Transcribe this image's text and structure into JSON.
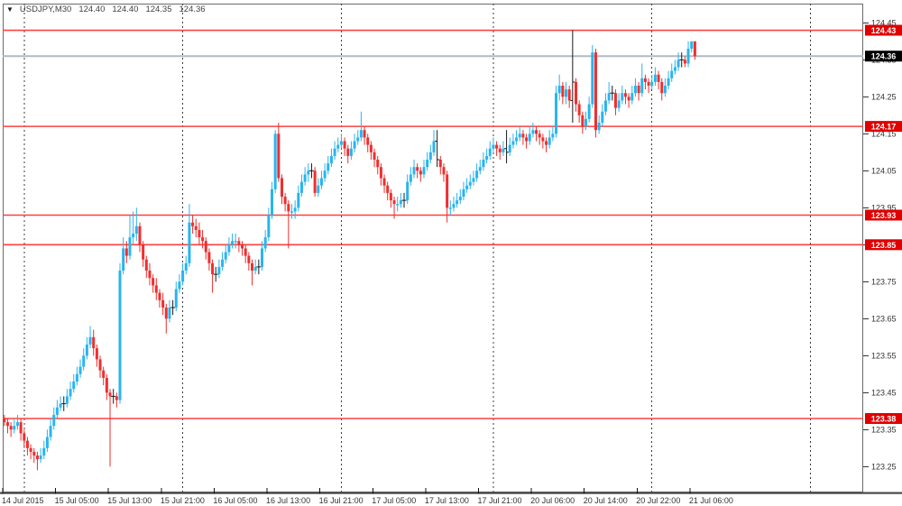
{
  "app": {
    "quote": {
      "symbol_period": "USDJPY,M30",
      "open": "124.40",
      "high": "124.40",
      "low": "124.35",
      "close": "124.36"
    }
  },
  "colors": {
    "bull": "#2AB4F0",
    "bear": "#F02E2E",
    "black_bar": "#1A1A1A",
    "level_line": "#FF4040",
    "bid_line": "#B0BAC6",
    "badge_red": "#DF0000",
    "badge_black": "#000000",
    "badge_text": "#FFFFFF",
    "axis_text": "#333333",
    "border": "#6B6B6B",
    "separator": "#3C3C3C",
    "axis_line": "#4A4A4A",
    "background": "#FFFFFF"
  },
  "price_axis": {
    "ticks": [
      "124.45",
      "124.35",
      "124.25",
      "124.15",
      "124.05",
      "123.95",
      "123.85",
      "123.75",
      "123.65",
      "123.55",
      "123.45",
      "123.35",
      "123.25"
    ]
  },
  "time_axis": {
    "labels": [
      {
        "bar": 0,
        "text": "14 Jul 2015"
      },
      {
        "bar": 16,
        "text": "15 Jul 05:00"
      },
      {
        "bar": 32,
        "text": "15 Jul 13:00"
      },
      {
        "bar": 48,
        "text": "15 Jul 21:00"
      },
      {
        "bar": 64,
        "text": "16 Jul 05:00"
      },
      {
        "bar": 80,
        "text": "16 Jul 13:00"
      },
      {
        "bar": 96,
        "text": "16 Jul 21:00"
      },
      {
        "bar": 112,
        "text": "17 Jul 05:00"
      },
      {
        "bar": 128,
        "text": "17 Jul 13:00"
      },
      {
        "bar": 144,
        "text": "17 Jul 21:00"
      },
      {
        "bar": 160,
        "text": "20 Jul 06:00"
      },
      {
        "bar": 176,
        "text": "20 Jul 14:00"
      },
      {
        "bar": 192,
        "text": "20 Jul 22:00"
      },
      {
        "bar": 208,
        "text": "21 Jul 06:00"
      }
    ]
  },
  "levels": [
    {
      "price": 124.43,
      "label": "124.43",
      "style": "level"
    },
    {
      "price": 124.36,
      "label": "124.36",
      "style": "bid"
    },
    {
      "price": 124.17,
      "label": "124.17",
      "style": "level"
    },
    {
      "price": 123.93,
      "label": "123.93",
      "style": "level"
    },
    {
      "price": 123.85,
      "label": "123.85",
      "style": "level"
    },
    {
      "price": 123.38,
      "label": "123.38",
      "style": "level"
    }
  ],
  "separator_bars": [
    6,
    54,
    102,
    148,
    196,
    244
  ],
  "chart_data": {
    "type": "candlestick",
    "symbol": "USDJPY",
    "timeframe": "M30",
    "bar_minutes": 30,
    "ylim": [
      123.18,
      124.502
    ],
    "x_start_label": "14 Jul 2015",
    "x_end_label": "21 Jul 06:00",
    "black_bar_indices": [
      18,
      33,
      51,
      64,
      77,
      93,
      121,
      131,
      152,
      172,
      184,
      205
    ],
    "candles": [
      [
        123.38,
        123.39,
        123.36,
        123.37
      ],
      [
        123.37,
        123.38,
        123.34,
        123.36
      ],
      [
        123.36,
        123.37,
        123.33,
        123.35
      ],
      [
        123.35,
        123.38,
        123.34,
        123.36
      ],
      [
        123.36,
        123.39,
        123.35,
        123.37
      ],
      [
        123.37,
        123.38,
        123.32,
        123.34
      ],
      [
        123.34,
        123.35,
        123.3,
        123.32
      ],
      [
        123.32,
        123.33,
        123.28,
        123.3
      ],
      [
        123.3,
        123.31,
        123.27,
        123.29
      ],
      [
        123.29,
        123.3,
        123.26,
        123.28
      ],
      [
        123.28,
        123.29,
        123.24,
        123.27
      ],
      [
        123.27,
        123.3,
        123.26,
        123.28
      ],
      [
        123.28,
        123.32,
        123.27,
        123.3
      ],
      [
        123.3,
        123.35,
        123.29,
        123.33
      ],
      [
        123.33,
        123.38,
        123.32,
        123.36
      ],
      [
        123.36,
        123.41,
        123.35,
        123.39
      ],
      [
        123.39,
        123.43,
        123.38,
        123.41
      ],
      [
        123.41,
        123.44,
        123.4,
        123.42
      ],
      [
        123.42,
        123.44,
        123.4,
        123.42
      ],
      [
        123.42,
        123.46,
        123.41,
        123.44
      ],
      [
        123.44,
        123.48,
        123.43,
        123.46
      ],
      [
        123.46,
        123.5,
        123.45,
        123.48
      ],
      [
        123.48,
        123.52,
        123.47,
        123.5
      ],
      [
        123.5,
        123.54,
        123.49,
        123.52
      ],
      [
        123.52,
        123.57,
        123.51,
        123.55
      ],
      [
        123.55,
        123.6,
        123.54,
        123.58
      ],
      [
        123.58,
        123.63,
        123.57,
        123.6
      ],
      [
        123.6,
        123.62,
        123.55,
        123.57
      ],
      [
        123.57,
        123.58,
        123.52,
        123.54
      ],
      [
        123.54,
        123.55,
        123.49,
        123.51
      ],
      [
        123.51,
        123.52,
        123.47,
        123.49
      ],
      [
        123.49,
        123.5,
        123.43,
        123.45
      ],
      [
        123.45,
        123.46,
        123.25,
        123.44
      ],
      [
        123.44,
        123.46,
        123.42,
        123.44
      ],
      [
        123.44,
        123.45,
        123.41,
        123.43
      ],
      [
        123.43,
        123.8,
        123.42,
        123.78
      ],
      [
        123.78,
        123.87,
        123.77,
        123.84
      ],
      [
        123.84,
        123.86,
        123.8,
        123.82
      ],
      [
        123.82,
        123.93,
        123.81,
        123.87
      ],
      [
        123.87,
        123.94,
        123.85,
        123.88
      ],
      [
        123.88,
        123.95,
        123.86,
        123.9
      ],
      [
        123.9,
        123.91,
        123.83,
        123.85
      ],
      [
        123.85,
        123.86,
        123.79,
        123.81
      ],
      [
        123.81,
        123.82,
        123.76,
        123.78
      ],
      [
        123.78,
        123.8,
        123.74,
        123.76
      ],
      [
        123.76,
        123.77,
        123.72,
        123.74
      ],
      [
        123.74,
        123.76,
        123.7,
        123.72
      ],
      [
        123.72,
        123.73,
        123.68,
        123.7
      ],
      [
        123.7,
        123.72,
        123.66,
        123.68
      ],
      [
        123.68,
        123.69,
        123.61,
        123.65
      ],
      [
        123.65,
        123.7,
        123.64,
        123.68
      ],
      [
        123.68,
        123.7,
        123.66,
        123.68
      ],
      [
        123.68,
        123.75,
        123.67,
        123.73
      ],
      [
        123.73,
        123.77,
        123.72,
        123.75
      ],
      [
        123.75,
        123.8,
        123.74,
        123.78
      ],
      [
        123.78,
        123.82,
        123.77,
        123.8
      ],
      [
        123.8,
        123.96,
        123.79,
        123.91
      ],
      [
        123.91,
        123.93,
        123.88,
        123.9
      ],
      [
        123.9,
        123.92,
        123.87,
        123.89
      ],
      [
        123.89,
        123.91,
        123.85,
        123.87
      ],
      [
        123.87,
        123.89,
        123.84,
        123.86
      ],
      [
        123.86,
        123.87,
        123.81,
        123.83
      ],
      [
        123.83,
        123.84,
        123.78,
        123.8
      ],
      [
        123.8,
        123.81,
        123.72,
        123.77
      ],
      [
        123.77,
        123.79,
        123.75,
        123.77
      ],
      [
        123.77,
        123.81,
        123.76,
        123.79
      ],
      [
        123.79,
        123.83,
        123.78,
        123.81
      ],
      [
        123.81,
        123.85,
        123.8,
        123.83
      ],
      [
        123.83,
        123.87,
        123.82,
        123.85
      ],
      [
        123.85,
        123.88,
        123.84,
        123.86
      ],
      [
        123.86,
        123.88,
        123.84,
        123.86
      ],
      [
        123.86,
        123.87,
        123.83,
        123.85
      ],
      [
        123.85,
        123.86,
        123.82,
        123.84
      ],
      [
        123.84,
        123.85,
        123.8,
        123.82
      ],
      [
        123.82,
        123.83,
        123.78,
        123.8
      ],
      [
        123.8,
        123.81,
        123.74,
        123.78
      ],
      [
        123.78,
        123.81,
        123.77,
        123.79
      ],
      [
        123.79,
        123.81,
        123.77,
        123.79
      ],
      [
        123.79,
        123.86,
        123.78,
        123.84
      ],
      [
        123.84,
        123.89,
        123.83,
        123.87
      ],
      [
        123.87,
        123.95,
        123.86,
        123.93
      ],
      [
        123.93,
        124.02,
        123.92,
        124.0
      ],
      [
        124.0,
        124.16,
        123.99,
        124.15
      ],
      [
        124.15,
        124.18,
        124.02,
        124.03
      ],
      [
        124.03,
        124.04,
        123.96,
        123.98
      ],
      [
        123.98,
        123.99,
        123.94,
        123.96
      ],
      [
        123.96,
        123.97,
        123.84,
        123.94
      ],
      [
        123.94,
        123.96,
        123.92,
        123.94
      ],
      [
        123.94,
        123.97,
        123.92,
        123.95
      ],
      [
        123.95,
        124.01,
        123.94,
        123.99
      ],
      [
        123.99,
        124.04,
        123.98,
        124.02
      ],
      [
        124.02,
        124.06,
        124.01,
        124.04
      ],
      [
        124.04,
        124.07,
        124.02,
        124.05
      ],
      [
        124.05,
        124.07,
        124.03,
        124.05
      ],
      [
        124.05,
        124.06,
        123.98,
        123.99
      ],
      [
        123.99,
        124.03,
        123.98,
        124.01
      ],
      [
        124.01,
        124.05,
        124.0,
        124.03
      ],
      [
        124.03,
        124.07,
        124.02,
        124.05
      ],
      [
        124.05,
        124.09,
        124.04,
        124.07
      ],
      [
        124.07,
        124.11,
        124.06,
        124.09
      ],
      [
        124.09,
        124.13,
        124.08,
        124.11
      ],
      [
        124.11,
        124.14,
        124.1,
        124.12
      ],
      [
        124.12,
        124.15,
        124.11,
        124.13
      ],
      [
        124.13,
        124.14,
        124.09,
        124.11
      ],
      [
        124.11,
        124.12,
        124.07,
        124.09
      ],
      [
        124.09,
        124.13,
        124.08,
        124.11
      ],
      [
        124.11,
        124.15,
        124.1,
        124.13
      ],
      [
        124.13,
        124.16,
        124.12,
        124.14
      ],
      [
        124.14,
        124.21,
        124.13,
        124.16
      ],
      [
        124.16,
        124.17,
        124.12,
        124.14
      ],
      [
        124.14,
        124.15,
        124.1,
        124.12
      ],
      [
        124.12,
        124.13,
        124.08,
        124.1
      ],
      [
        124.1,
        124.11,
        124.06,
        124.08
      ],
      [
        124.08,
        124.09,
        124.04,
        124.06
      ],
      [
        124.06,
        124.07,
        124.01,
        124.03
      ],
      [
        124.03,
        124.04,
        123.99,
        124.01
      ],
      [
        124.01,
        124.02,
        123.97,
        123.99
      ],
      [
        123.99,
        124.0,
        123.95,
        123.97
      ],
      [
        123.97,
        123.98,
        123.92,
        123.96
      ],
      [
        123.96,
        123.98,
        123.94,
        123.96
      ],
      [
        123.96,
        123.99,
        123.95,
        123.97
      ],
      [
        123.97,
        123.99,
        123.95,
        123.97
      ],
      [
        123.97,
        124.04,
        123.96,
        124.02
      ],
      [
        124.02,
        124.06,
        124.01,
        124.04
      ],
      [
        124.04,
        124.08,
        124.03,
        124.06
      ],
      [
        124.06,
        124.07,
        124.03,
        124.05
      ],
      [
        124.05,
        124.06,
        124.02,
        124.04
      ],
      [
        124.04,
        124.08,
        124.03,
        124.06
      ],
      [
        124.06,
        124.1,
        124.05,
        124.08
      ],
      [
        124.08,
        124.12,
        124.07,
        124.1
      ],
      [
        124.1,
        124.16,
        124.09,
        124.13
      ],
      [
        124.13,
        124.16,
        124.06,
        124.08
      ],
      [
        124.08,
        124.09,
        124.04,
        124.06
      ],
      [
        124.06,
        124.07,
        124.02,
        124.04
      ],
      [
        124.04,
        124.05,
        123.91,
        123.95
      ],
      [
        123.95,
        123.97,
        123.93,
        123.95
      ],
      [
        123.95,
        123.98,
        123.94,
        123.96
      ],
      [
        123.96,
        123.99,
        123.95,
        123.97
      ],
      [
        123.97,
        124.0,
        123.96,
        123.98
      ],
      [
        123.98,
        124.02,
        123.97,
        124.0
      ],
      [
        124.0,
        124.03,
        123.99,
        124.01
      ],
      [
        124.01,
        124.04,
        124.0,
        124.02
      ],
      [
        124.02,
        124.05,
        124.01,
        124.03
      ],
      [
        124.03,
        124.07,
        124.02,
        124.05
      ],
      [
        124.05,
        124.08,
        124.04,
        124.06
      ],
      [
        124.06,
        124.1,
        124.05,
        124.08
      ],
      [
        124.08,
        124.11,
        124.07,
        124.09
      ],
      [
        124.09,
        124.13,
        124.08,
        124.11
      ],
      [
        124.11,
        124.14,
        124.1,
        124.12
      ],
      [
        124.12,
        124.13,
        124.09,
        124.11
      ],
      [
        124.11,
        124.12,
        124.08,
        124.1
      ],
      [
        124.1,
        124.13,
        124.09,
        124.11
      ],
      [
        124.11,
        124.16,
        124.07,
        124.1
      ],
      [
        124.1,
        124.14,
        124.09,
        124.12
      ],
      [
        124.12,
        124.15,
        124.11,
        124.13
      ],
      [
        124.13,
        124.16,
        124.12,
        124.14
      ],
      [
        124.14,
        124.17,
        124.13,
        124.15
      ],
      [
        124.15,
        124.16,
        124.12,
        124.14
      ],
      [
        124.14,
        124.15,
        124.11,
        124.13
      ],
      [
        124.13,
        124.17,
        124.12,
        124.15
      ],
      [
        124.15,
        124.18,
        124.14,
        124.16
      ],
      [
        124.16,
        124.17,
        124.13,
        124.15
      ],
      [
        124.15,
        124.16,
        124.12,
        124.14
      ],
      [
        124.14,
        124.15,
        124.11,
        124.13
      ],
      [
        124.13,
        124.14,
        124.1,
        124.12
      ],
      [
        124.12,
        124.16,
        124.11,
        124.14
      ],
      [
        124.14,
        124.17,
        124.13,
        124.15
      ],
      [
        124.15,
        124.28,
        124.14,
        124.26
      ],
      [
        124.26,
        124.31,
        124.24,
        124.28
      ],
      [
        124.28,
        124.29,
        124.23,
        124.25
      ],
      [
        124.25,
        124.29,
        124.23,
        124.27
      ],
      [
        124.27,
        124.28,
        124.22,
        124.24
      ],
      [
        124.24,
        124.43,
        124.18,
        124.29
      ],
      [
        124.29,
        124.3,
        124.21,
        124.23
      ],
      [
        124.23,
        124.24,
        124.18,
        124.2
      ],
      [
        124.2,
        124.21,
        124.15,
        124.17
      ],
      [
        124.17,
        124.21,
        124.16,
        124.19
      ],
      [
        124.19,
        124.25,
        124.18,
        124.23
      ],
      [
        124.23,
        124.39,
        124.22,
        124.37
      ],
      [
        124.37,
        124.38,
        124.14,
        124.16
      ],
      [
        124.16,
        124.2,
        124.15,
        124.18
      ],
      [
        124.18,
        124.23,
        124.17,
        124.21
      ],
      [
        124.21,
        124.26,
        124.2,
        124.24
      ],
      [
        124.24,
        124.29,
        124.23,
        124.26
      ],
      [
        124.26,
        124.28,
        124.24,
        124.26
      ],
      [
        124.26,
        124.27,
        124.2,
        124.22
      ],
      [
        124.22,
        124.26,
        124.21,
        124.24
      ],
      [
        124.24,
        124.28,
        124.23,
        124.26
      ],
      [
        124.26,
        124.27,
        124.23,
        124.25
      ],
      [
        124.25,
        124.26,
        124.22,
        124.24
      ],
      [
        124.24,
        124.28,
        124.23,
        124.26
      ],
      [
        124.26,
        124.3,
        124.25,
        124.28
      ],
      [
        124.28,
        124.29,
        124.24,
        124.26
      ],
      [
        124.26,
        124.34,
        124.25,
        124.3
      ],
      [
        124.3,
        124.31,
        124.27,
        124.29
      ],
      [
        124.29,
        124.3,
        124.26,
        124.28
      ],
      [
        124.28,
        124.31,
        124.27,
        124.29
      ],
      [
        124.29,
        124.33,
        124.28,
        124.31
      ],
      [
        124.31,
        124.32,
        124.27,
        124.29
      ],
      [
        124.29,
        124.3,
        124.24,
        124.26
      ],
      [
        124.26,
        124.3,
        124.25,
        124.28
      ],
      [
        124.28,
        124.32,
        124.27,
        124.3
      ],
      [
        124.3,
        124.34,
        124.29,
        124.32
      ],
      [
        124.32,
        124.35,
        124.31,
        124.33
      ],
      [
        124.33,
        124.37,
        124.32,
        124.35
      ],
      [
        124.35,
        124.37,
        124.33,
        124.35
      ],
      [
        124.35,
        124.36,
        124.33,
        124.34
      ],
      [
        124.34,
        124.4,
        124.33,
        124.38
      ],
      [
        124.38,
        124.4,
        124.37,
        124.4
      ],
      [
        124.4,
        124.4,
        124.35,
        124.36
      ]
    ]
  }
}
